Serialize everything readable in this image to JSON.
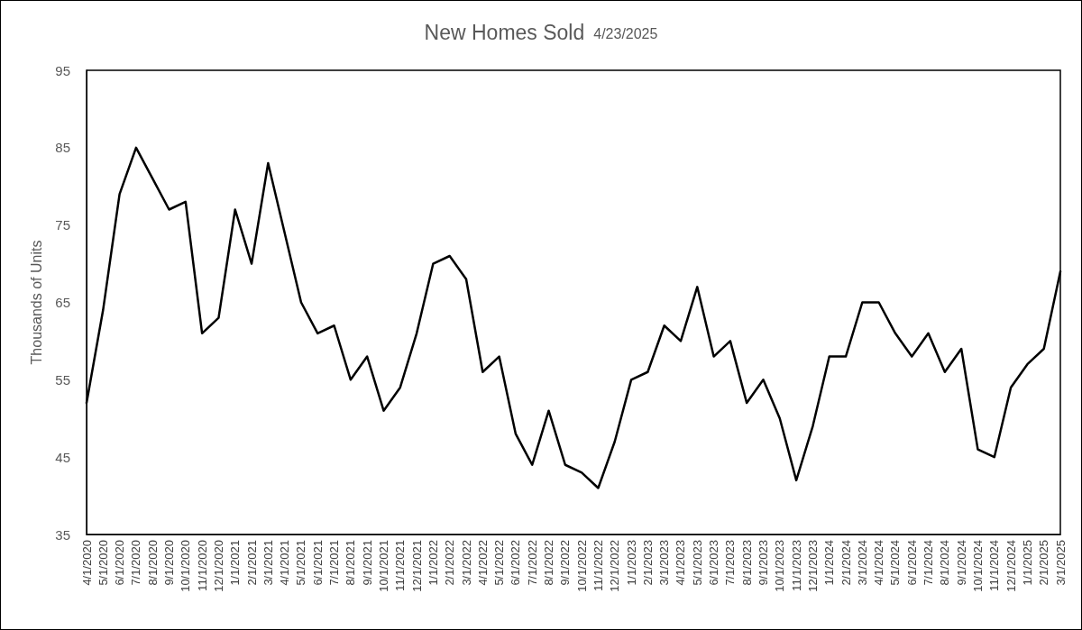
{
  "chart_data": {
    "type": "line",
    "title": "New Homes Sold",
    "subtitle": "4/23/2025",
    "ylabel": "Thousands of Units",
    "categories": [
      "4/1/2020",
      "5/1/2020",
      "6/1/2020",
      "7/1/2020",
      "8/1/2020",
      "9/1/2020",
      "10/1/2020",
      "11/1/2020",
      "12/1/2020",
      "1/1/2021",
      "2/1/2021",
      "3/1/2021",
      "4/1/2021",
      "5/1/2021",
      "6/1/2021",
      "7/1/2021",
      "8/1/2021",
      "9/1/2021",
      "10/1/2021",
      "11/1/2021",
      "12/1/2021",
      "1/1/2022",
      "2/1/2022",
      "3/1/2022",
      "4/1/2022",
      "5/1/2022",
      "6/1/2022",
      "7/1/2022",
      "8/1/2022",
      "9/1/2022",
      "10/1/2022",
      "11/1/2022",
      "12/1/2022",
      "1/1/2023",
      "2/1/2023",
      "3/1/2023",
      "4/1/2023",
      "5/1/2023",
      "6/1/2023",
      "7/1/2023",
      "8/1/2023",
      "9/1/2023",
      "10/1/2023",
      "11/1/2023",
      "12/1/2023",
      "1/1/2024",
      "2/1/2024",
      "3/1/2024",
      "4/1/2024",
      "5/1/2024",
      "6/1/2024",
      "7/1/2024",
      "8/1/2024",
      "9/1/2024",
      "10/1/2024",
      "11/1/2024",
      "12/1/2024",
      "1/1/2025",
      "2/1/2025",
      "3/1/2025"
    ],
    "series": [
      {
        "color": "#000000",
        "values": [
          52,
          64,
          79,
          85,
          81,
          77,
          78,
          61,
          63,
          77,
          70,
          83,
          74,
          65,
          61,
          62,
          55,
          58,
          51,
          54,
          61,
          70,
          71,
          68,
          56,
          58,
          48,
          44,
          51,
          44,
          43,
          41,
          47,
          55,
          56,
          62,
          60,
          67,
          58,
          60,
          52,
          55,
          50,
          42,
          49,
          58,
          58,
          65,
          65,
          61,
          58,
          61,
          56,
          59,
          46,
          45,
          54,
          57,
          59,
          69
        ]
      }
    ],
    "ylim": [
      35,
      95
    ],
    "yticks": [
      35,
      45,
      55,
      65,
      75,
      85,
      95
    ],
    "grid": false,
    "marker": "none",
    "line_style": "solid"
  }
}
